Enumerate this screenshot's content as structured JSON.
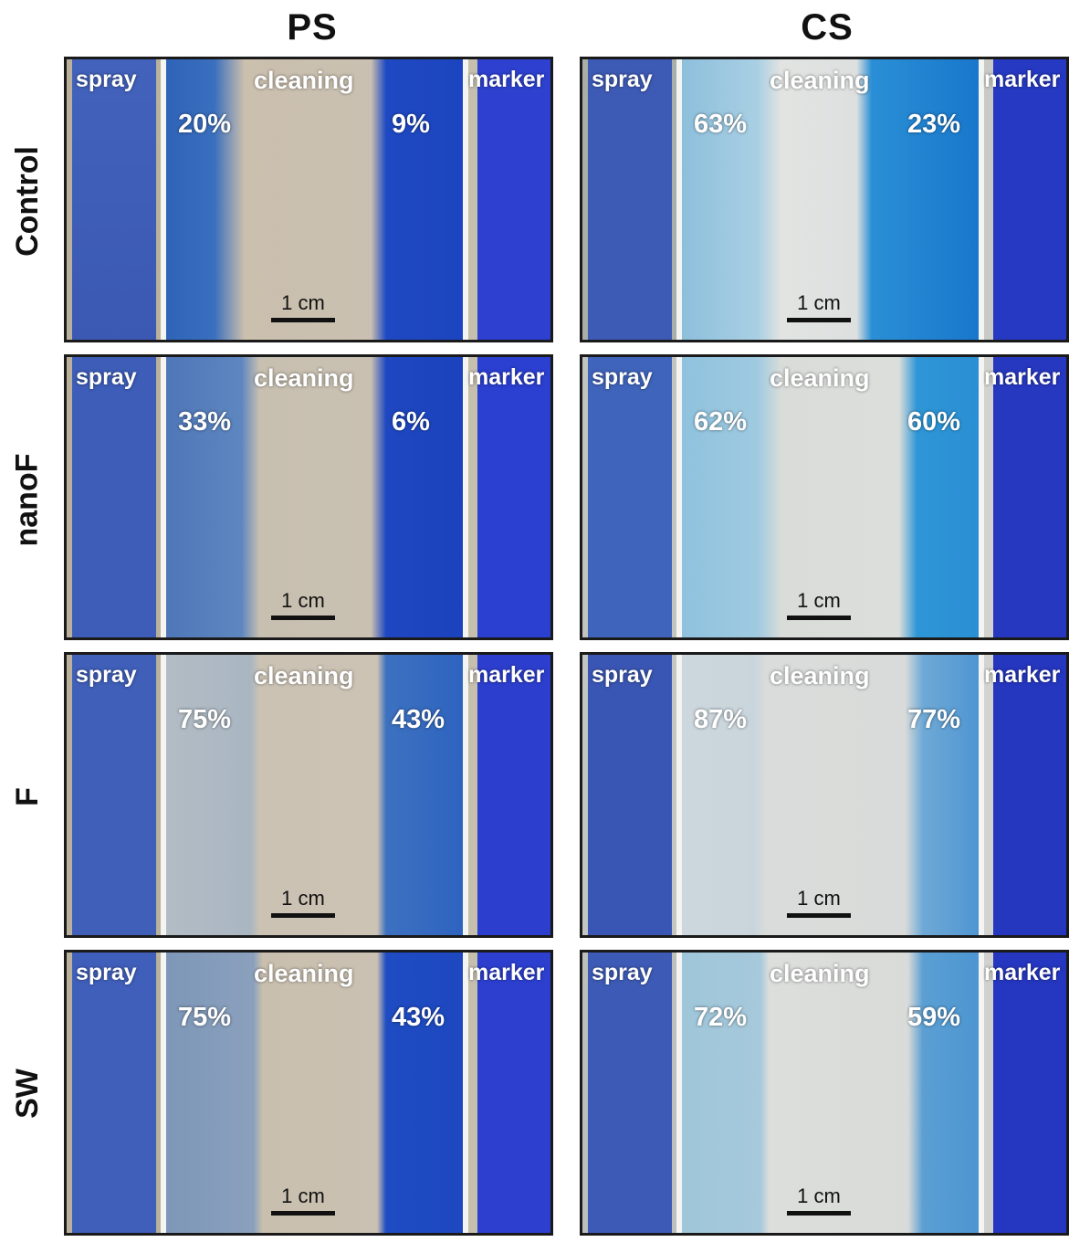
{
  "columns": [
    "PS",
    "CS"
  ],
  "rows": [
    "Control",
    "nanoF",
    "F",
    "SW"
  ],
  "labels": {
    "spray": "spray",
    "cleaning": "cleaning",
    "marker": "marker",
    "scale": "1 cm"
  },
  "panels": {
    "ps_control": {
      "left_pct": "20%",
      "right_pct": "9%"
    },
    "cs_control": {
      "left_pct": "63%",
      "right_pct": "23%"
    },
    "ps_nanof": {
      "left_pct": "33%",
      "right_pct": "6%"
    },
    "cs_nanof": {
      "left_pct": "62%",
      "right_pct": "60%"
    },
    "ps_f": {
      "left_pct": "75%",
      "right_pct": "43%"
    },
    "cs_f": {
      "left_pct": "87%",
      "right_pct": "77%"
    },
    "ps_sw": {
      "left_pct": "75%",
      "right_pct": "43%"
    },
    "cs_sw": {
      "left_pct": "72%",
      "right_pct": "59%"
    }
  },
  "colors": {
    "spray": "#3d5db8",
    "marker": "#2a3bd0",
    "ps_surface": "#c9c0b0",
    "cs_surface": "#d8dbd9",
    "residue_blue": "#1d5fc4",
    "residue_cyan": "#2e9bd8"
  }
}
